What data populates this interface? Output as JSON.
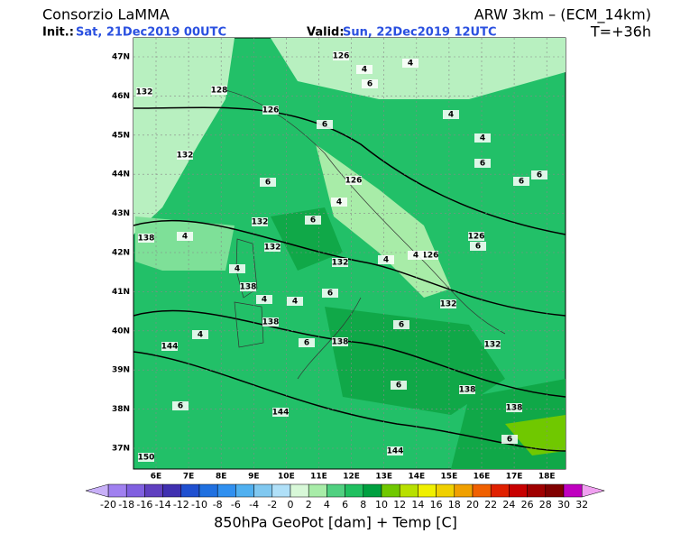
{
  "header": {
    "title": "Consorzio LaMMA",
    "init_label": "Init.:",
    "init": "Sat, 21Dec2019 00UTC",
    "valid_label": "Valid:",
    "valid": "Sun, 22Dec2019 12UTC",
    "model": "ARW 3km – (ECM_14km)",
    "lead": "T=+36h"
  },
  "map": {
    "lat_labels": [
      "47N",
      "46N",
      "45N",
      "44N",
      "43N",
      "42N",
      "41N",
      "40N",
      "39N",
      "38N",
      "37N"
    ],
    "lon_labels": [
      "6E",
      "7E",
      "8E",
      "9E",
      "10E",
      "11E",
      "12E",
      "13E",
      "14E",
      "15E",
      "16E",
      "17E",
      "18E"
    ],
    "contour_labels": [
      "126",
      "126",
      "126",
      "126",
      "126",
      "132",
      "132",
      "132",
      "132",
      "132",
      "132",
      "132",
      "138",
      "138",
      "138",
      "138",
      "138",
      "138",
      "144",
      "144",
      "144",
      "150",
      "128",
      "6",
      "6",
      "6",
      "6",
      "6",
      "6",
      "6",
      "6",
      "6",
      "6",
      "6",
      "6",
      "6",
      "6",
      "4",
      "4",
      "4",
      "4",
      "4",
      "4",
      "4",
      "4",
      "4",
      "4",
      "4",
      "4"
    ]
  },
  "colorbar": {
    "ticks": [
      -20,
      -18,
      -16,
      -14,
      -12,
      -10,
      -8,
      -6,
      -4,
      -2,
      0,
      2,
      4,
      6,
      8,
      10,
      12,
      14,
      16,
      18,
      20,
      22,
      24,
      26,
      28,
      30,
      32
    ],
    "colors": [
      "#a080f0",
      "#8060e0",
      "#6040c0",
      "#4030b0",
      "#2050d0",
      "#2070e0",
      "#3090f0",
      "#50b0f0",
      "#80c8f0",
      "#b0e0f8",
      "#d8f8d8",
      "#a8eca8",
      "#50d080",
      "#20c060",
      "#00a040",
      "#70c800",
      "#b8e000",
      "#f0f000",
      "#f0d000",
      "#f0a000",
      "#f06000",
      "#e02000",
      "#c80000",
      "#a00000",
      "#800000",
      "#c000c0"
    ],
    "under_color": "#c8b0f8",
    "over_color": "#f0a0f0",
    "title": "850hPa GeoPot [dam] + Temp [C]"
  }
}
